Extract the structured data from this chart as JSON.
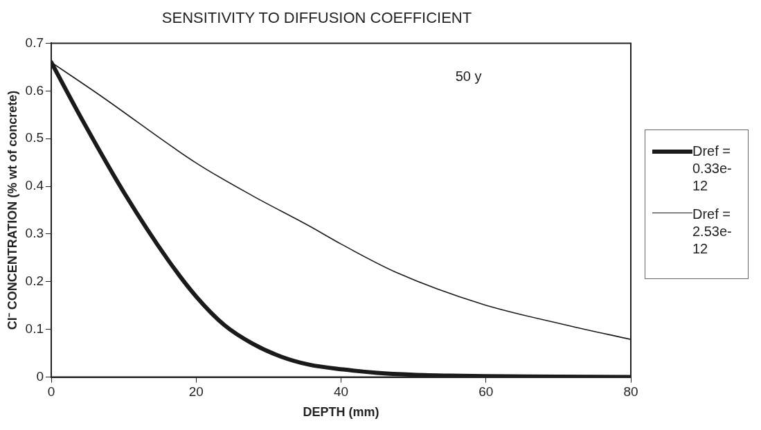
{
  "chart_data": {
    "type": "line",
    "title": "SENSITIVITY TO DIFFUSION COEFFICIENT",
    "xlabel": "DEPTH (mm)",
    "ylabel": "Cl⁻ CONCENTRATION (% wt of concrete)",
    "xlim": [
      0,
      80
    ],
    "xticks": [
      0,
      20,
      40,
      60,
      80
    ],
    "ylim": [
      0,
      0.7
    ],
    "yticks": [
      0,
      0.1,
      0.2,
      0.3,
      0.4,
      0.5,
      0.6,
      0.7
    ],
    "grid": false,
    "legend": "right",
    "marker": "none",
    "line_style": "solid",
    "annotations": [
      "50 y"
    ],
    "series": [
      {
        "name": "Dref = 0.33e-12",
        "color": "#1a1a1a",
        "x": [
          0,
          4.4,
          10.2,
          16.1,
          20,
          23.9,
          27.8,
          31.7,
          35.6,
          40.3,
          45,
          50,
          55,
          60,
          70,
          80
        ],
        "values": [
          0.66,
          0.536,
          0.383,
          0.246,
          0.169,
          0.109,
          0.07,
          0.043,
          0.026,
          0.016,
          0.009,
          0.005,
          0.003,
          0.002,
          0.001,
          0
        ]
      },
      {
        "name": "Dref = 2.53e-12",
        "color": "#1a1a1a",
        "x": [
          0,
          6.7,
          20,
          27.8,
          35.6,
          40,
          47.7,
          59.5,
          71.1,
          80
        ],
        "values": [
          0.66,
          0.591,
          0.449,
          0.38,
          0.317,
          0.279,
          0.219,
          0.153,
          0.109,
          0.079
        ]
      }
    ]
  }
}
